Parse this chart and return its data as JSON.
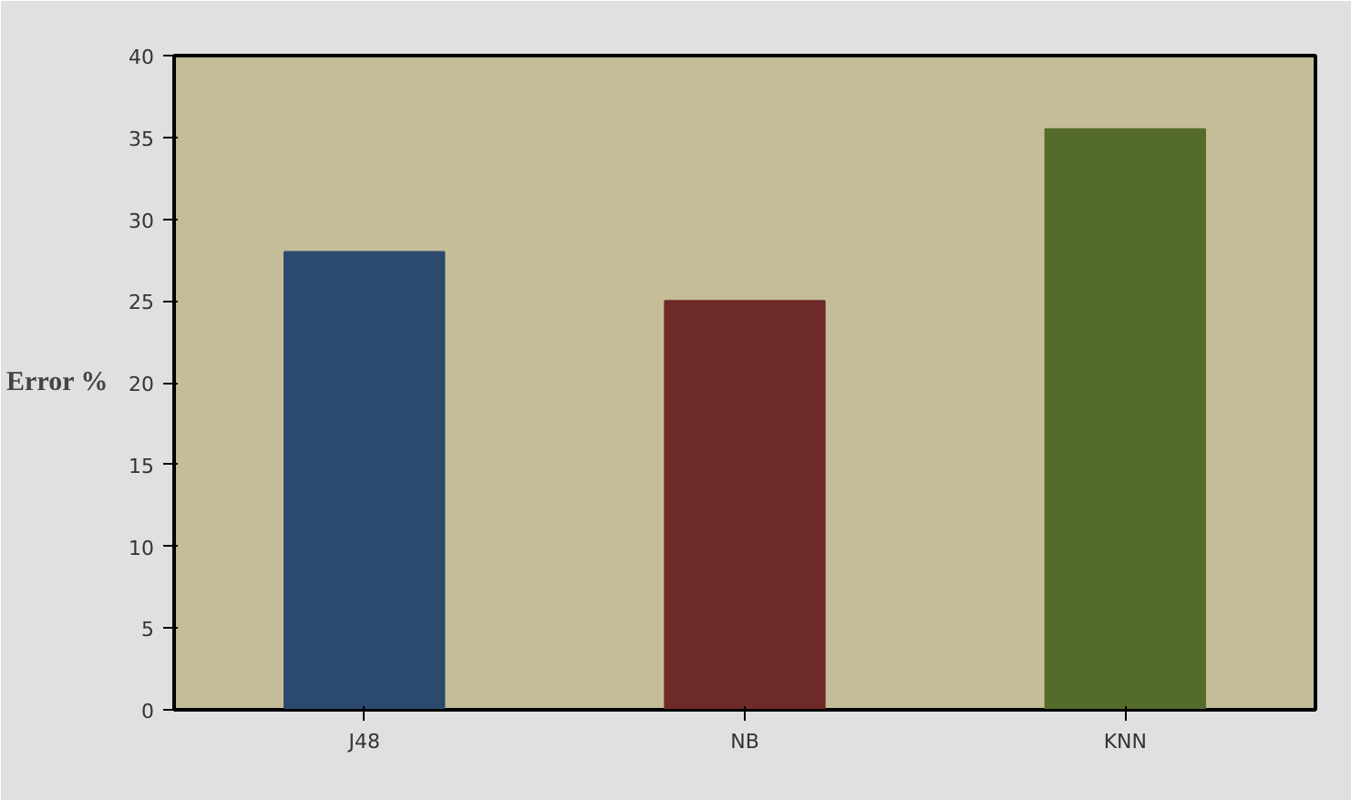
{
  "chart_data": {
    "type": "bar",
    "ylabel": "Error %",
    "categories": [
      "J48",
      "NB",
      "KNN"
    ],
    "values": [
      28,
      25,
      35.5
    ],
    "colors": [
      "#2c4a6e",
      "#6e2a28",
      "#556b2a"
    ],
    "ylim": [
      0,
      40
    ],
    "yticks": [
      0,
      5,
      10,
      15,
      20,
      25,
      30,
      35,
      40
    ],
    "grid": false
  }
}
